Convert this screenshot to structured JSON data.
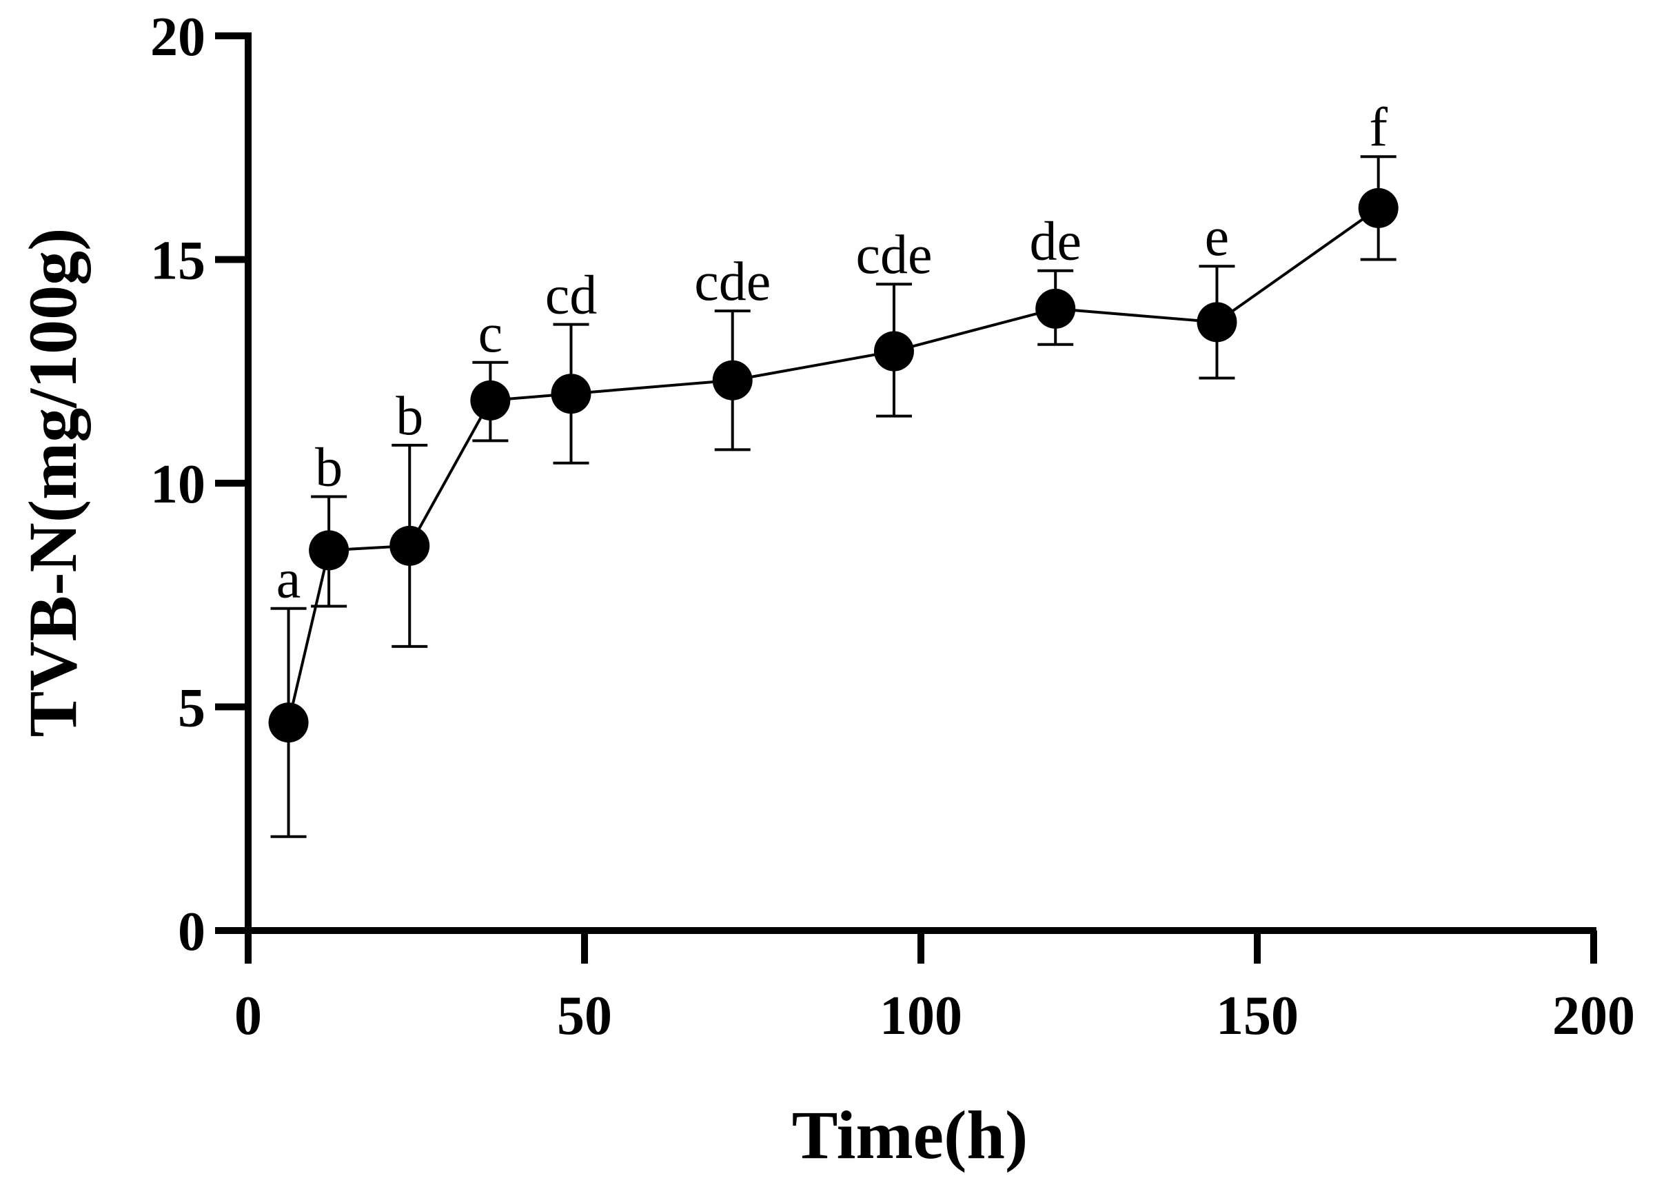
{
  "chart_data": {
    "type": "line",
    "title": "",
    "xlabel": "Time(h)",
    "ylabel": "TVB-N(mg/100g)",
    "xlim": [
      0,
      200
    ],
    "ylim": [
      0,
      20
    ],
    "xticks": [
      0,
      50,
      100,
      150,
      200
    ],
    "yticks": [
      0,
      5,
      10,
      15,
      20
    ],
    "xtick_labels": [
      "0",
      "50",
      "100",
      "150",
      "200"
    ],
    "ytick_labels": [
      "0",
      "5",
      "10",
      "15",
      "20"
    ],
    "grid": false,
    "legend": "none",
    "series": [
      {
        "name": "TVB-N",
        "color": "#000000",
        "marker": "filled-circle",
        "points": [
          {
            "x": 6,
            "y": 4.65,
            "err_low": 2.1,
            "err_high": 7.2,
            "label": "a"
          },
          {
            "x": 12,
            "y": 8.5,
            "err_low": 7.25,
            "err_high": 9.7,
            "label": "b"
          },
          {
            "x": 24,
            "y": 8.6,
            "err_low": 6.35,
            "err_high": 10.85,
            "label": "b"
          },
          {
            "x": 36,
            "y": 11.85,
            "err_low": 10.95,
            "err_high": 12.7,
            "label": "c"
          },
          {
            "x": 48,
            "y": 12.0,
            "err_low": 10.45,
            "err_high": 13.55,
            "label": "cd"
          },
          {
            "x": 72,
            "y": 12.3,
            "err_low": 10.75,
            "err_high": 13.85,
            "label": "cde"
          },
          {
            "x": 96,
            "y": 12.95,
            "err_low": 11.5,
            "err_high": 14.45,
            "label": "cde"
          },
          {
            "x": 120,
            "y": 13.9,
            "err_low": 13.1,
            "err_high": 14.75,
            "label": "de"
          },
          {
            "x": 144,
            "y": 13.6,
            "err_low": 12.35,
            "err_high": 14.85,
            "label": "e"
          },
          {
            "x": 168,
            "y": 16.15,
            "err_low": 15.0,
            "err_high": 17.3,
            "label": "f"
          }
        ]
      }
    ]
  }
}
